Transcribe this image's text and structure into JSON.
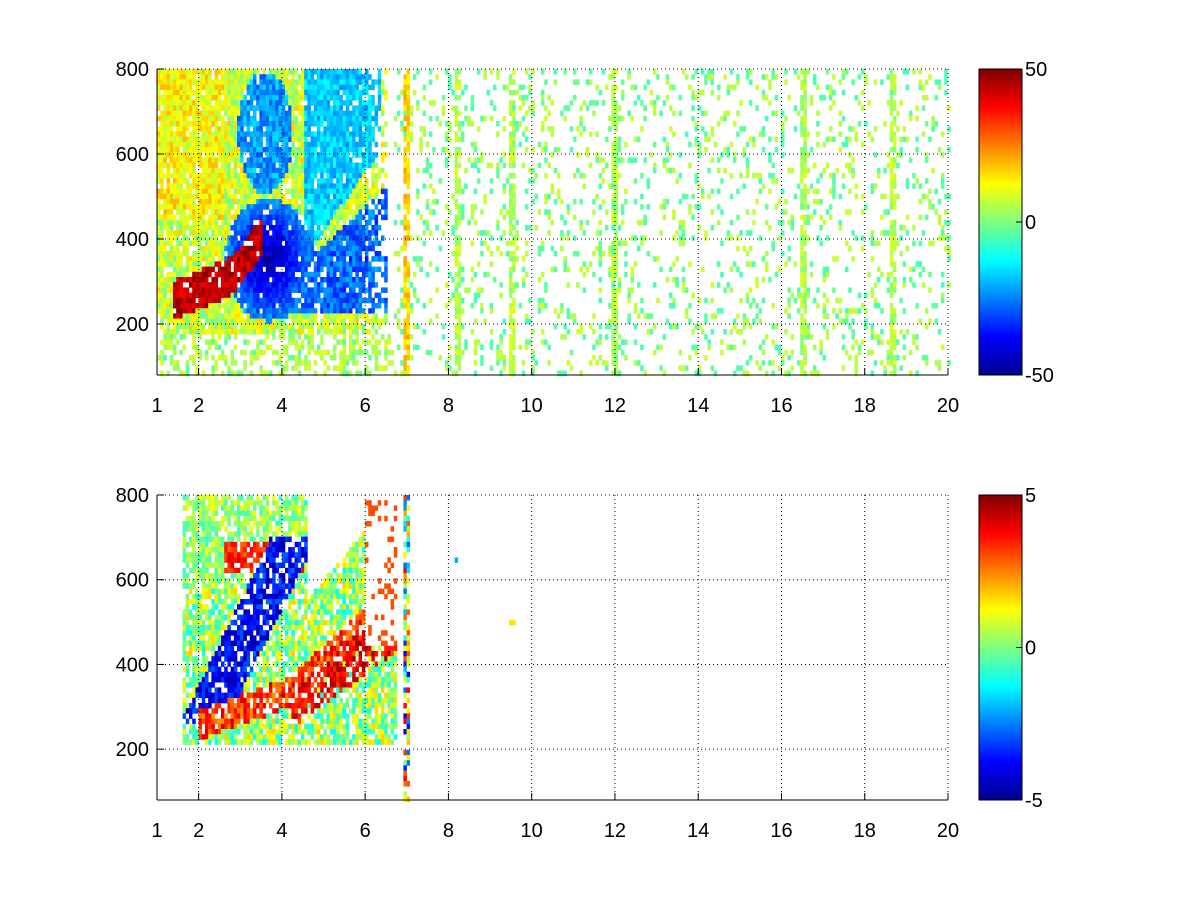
{
  "chart_data": [
    {
      "type": "heatmap",
      "title": "",
      "xlabel": "",
      "ylabel": "",
      "xlim": [
        1,
        20
      ],
      "ylim": [
        80,
        800
      ],
      "x_ticks": [
        1,
        2,
        4,
        6,
        8,
        10,
        12,
        14,
        16,
        18,
        20
      ],
      "y_ticks": [
        200,
        400,
        600,
        800
      ],
      "grid": "dotted",
      "colormap": "jet",
      "colorbar": {
        "min": -50,
        "max": 50,
        "ticks": [
          50,
          0,
          -50
        ]
      },
      "features": [
        {
          "description": "positive ridge",
          "x_range": [
            1.5,
            4.0
          ],
          "y_center": 280,
          "value": 45
        },
        {
          "description": "negative region",
          "x_range": [
            2.5,
            5.5
          ],
          "y_range": [
            250,
            500
          ],
          "value": -45
        },
        {
          "description": "sparse near-zero scatter",
          "x_range": [
            6,
            20
          ],
          "y_range": [
            80,
            800
          ],
          "value": 0
        },
        {
          "description": "vertical streaks",
          "x": [
            7.0,
            8.2,
            9.5,
            12.0,
            16.5,
            18.7
          ],
          "value": 5
        }
      ]
    },
    {
      "type": "heatmap",
      "title": "",
      "xlabel": "",
      "ylabel": "",
      "xlim": [
        1,
        20
      ],
      "ylim": [
        80,
        800
      ],
      "x_ticks": [
        1,
        2,
        4,
        6,
        8,
        10,
        12,
        14,
        16,
        18,
        20
      ],
      "y_ticks": [
        200,
        400,
        600,
        800
      ],
      "grid": "dotted",
      "colormap": "jet",
      "colorbar": {
        "min": -5,
        "max": 5,
        "ticks": [
          5,
          0,
          -5
        ]
      },
      "features": [
        {
          "description": "positive band",
          "x_range": [
            2.0,
            6.5
          ],
          "y_center": 300,
          "value": 4
        },
        {
          "description": "negative band",
          "x_range": [
            1.8,
            4.5
          ],
          "y_range": [
            280,
            650
          ],
          "value": -4
        },
        {
          "description": "upper positive patch",
          "x_range": [
            2.0,
            4.5
          ],
          "y_range": [
            580,
            800
          ],
          "value": 3
        },
        {
          "description": "vertical streak",
          "x": [
            7.0
          ],
          "value": 0
        }
      ]
    }
  ]
}
